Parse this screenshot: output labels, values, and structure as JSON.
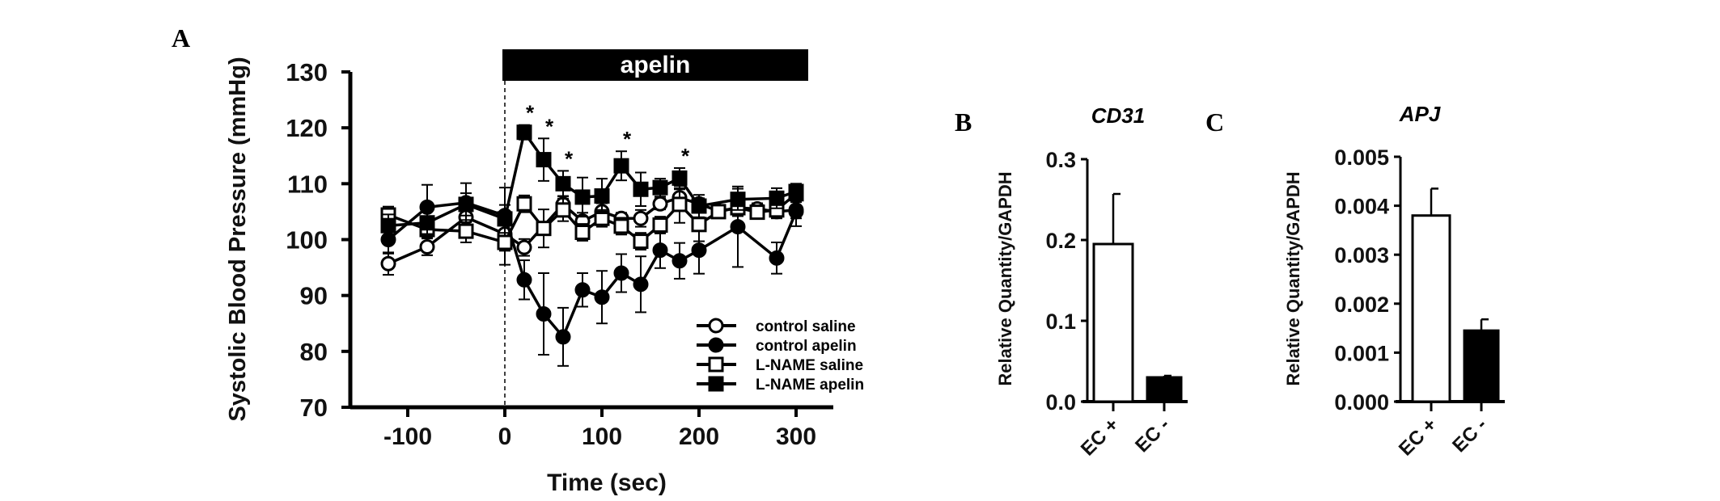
{
  "colors": {
    "ink": "#000000",
    "background": "#ffffff"
  },
  "chart_data": [
    {
      "panel": "A",
      "type": "line",
      "title": "",
      "xlabel": "Time (sec)",
      "ylabel": "Systolic Blood Pressure (mmHg)",
      "xlim": [
        -150,
        320
      ],
      "ylim": [
        70,
        130
      ],
      "xticks": [
        -100,
        0,
        100,
        200,
        300
      ],
      "yticks": [
        70,
        80,
        90,
        100,
        110,
        120,
        130
      ],
      "xtick_labels": [
        "-100",
        "0",
        "100",
        "200",
        "300"
      ],
      "ytick_labels": [
        "70",
        "80",
        "90",
        "100",
        "110",
        "120",
        "130"
      ],
      "grid": false,
      "legend_position": "bottom-right",
      "treatment_bar": {
        "label": "apelin",
        "start": 0,
        "end": 310
      },
      "significance": {
        "marker": "*",
        "x": [
          20,
          40,
          60,
          120,
          180
        ]
      },
      "series": [
        {
          "name": "control  saline",
          "marker": "open-circle",
          "x": [
            -120,
            -80,
            -40,
            0,
            20,
            60,
            80,
            100,
            120,
            140,
            160,
            180,
            200,
            220,
            240,
            260,
            280,
            300
          ],
          "y": [
            95.7,
            98.7,
            104,
            101,
            98.6,
            106.3,
            103.3,
            105,
            103.8,
            103.8,
            106.4,
            107.5,
            106.4,
            105.1,
            105.7,
            105.5,
            105,
            105.3
          ],
          "err": [
            2,
            1.5,
            2,
            3,
            1.5,
            1.5,
            1.5,
            1.5,
            1,
            1.5,
            1,
            1.5,
            1,
            1,
            1,
            1,
            1,
            1.5
          ]
        },
        {
          "name": "control  apelin",
          "marker": "filled-circle",
          "x": [
            -120,
            -80,
            -40,
            0,
            20,
            40,
            60,
            80,
            100,
            120,
            140,
            160,
            180,
            200,
            240,
            280,
            300
          ],
          "y": [
            100,
            105.8,
            106.6,
            104.3,
            92.8,
            86.7,
            82.6,
            91,
            89.7,
            94,
            92,
            98.1,
            96.2,
            98.1,
            102.3,
            96.7,
            105
          ],
          "err": [
            2.5,
            4,
            3.5,
            5,
            3.5,
            7.3,
            5.2,
            3,
            4.7,
            3.4,
            5,
            3.2,
            3.2,
            4.2,
            7.2,
            2.8,
            2.6
          ]
        },
        {
          "name": "L-NAME saline",
          "marker": "open-square",
          "x": [
            -120,
            -80,
            -40,
            0,
            20,
            40,
            60,
            80,
            100,
            120,
            140,
            160,
            180,
            200,
            220,
            240,
            260,
            280,
            300
          ],
          "y": [
            104.4,
            101.8,
            101.5,
            99.5,
            106.4,
            102,
            105.3,
            101.3,
            103.8,
            102.4,
            99.7,
            102.6,
            106.3,
            102.7,
            105,
            105.7,
            104.9,
            105.3,
            108.2
          ],
          "err": [
            1.5,
            1.5,
            2,
            4,
            1.5,
            3.4,
            2,
            1.5,
            1.5,
            1.5,
            1.5,
            1.5,
            3.3,
            3,
            1,
            1.5,
            1,
            1.5,
            1.5
          ]
        },
        {
          "name": "L-NAME apelin",
          "marker": "filled-square",
          "x": [
            -120,
            -80,
            -40,
            0,
            20,
            40,
            60,
            80,
            100,
            120,
            140,
            160,
            180,
            200,
            240,
            280,
            300
          ],
          "y": [
            102.5,
            103,
            106.3,
            103.7,
            119.2,
            114.3,
            110,
            107.6,
            107.8,
            113.2,
            109,
            109.3,
            111,
            106,
            107.2,
            107.4,
            108.6
          ],
          "err": [
            2,
            2,
            2,
            2.5,
            1.3,
            3.8,
            2.3,
            3.5,
            3.1,
            2.6,
            3,
            1.6,
            1.8,
            2,
            1.9,
            1.8,
            1.4
          ]
        }
      ]
    },
    {
      "panel": "B",
      "type": "bar",
      "title": "CD31",
      "xlabel": "",
      "ylabel": "Relative Quantity/GAPDH",
      "categories": [
        "EC +",
        "EC -"
      ],
      "values": [
        0.195,
        0.03
      ],
      "err": [
        0.062,
        0.002
      ],
      "fills": [
        "#ffffff",
        "#000000"
      ],
      "ylim": [
        0,
        0.3
      ],
      "yticks": [
        0,
        0.1,
        0.2,
        0.3
      ],
      "ytick_labels": [
        "0.0",
        "0.1",
        "0.2",
        "0.3"
      ]
    },
    {
      "panel": "C",
      "type": "bar",
      "title": "APJ",
      "xlabel": "",
      "ylabel": "Relative Quantity/GAPDH",
      "categories": [
        "EC +",
        "EC -"
      ],
      "values": [
        0.0038,
        0.00145
      ],
      "err": [
        0.00055,
        0.00023
      ],
      "fills": [
        "#ffffff",
        "#000000"
      ],
      "ylim": [
        0,
        0.005
      ],
      "yticks": [
        0,
        0.001,
        0.002,
        0.003,
        0.004,
        0.005
      ],
      "ytick_labels": [
        "0.000",
        "0.001",
        "0.002",
        "0.003",
        "0.004",
        "0.005"
      ]
    }
  ]
}
